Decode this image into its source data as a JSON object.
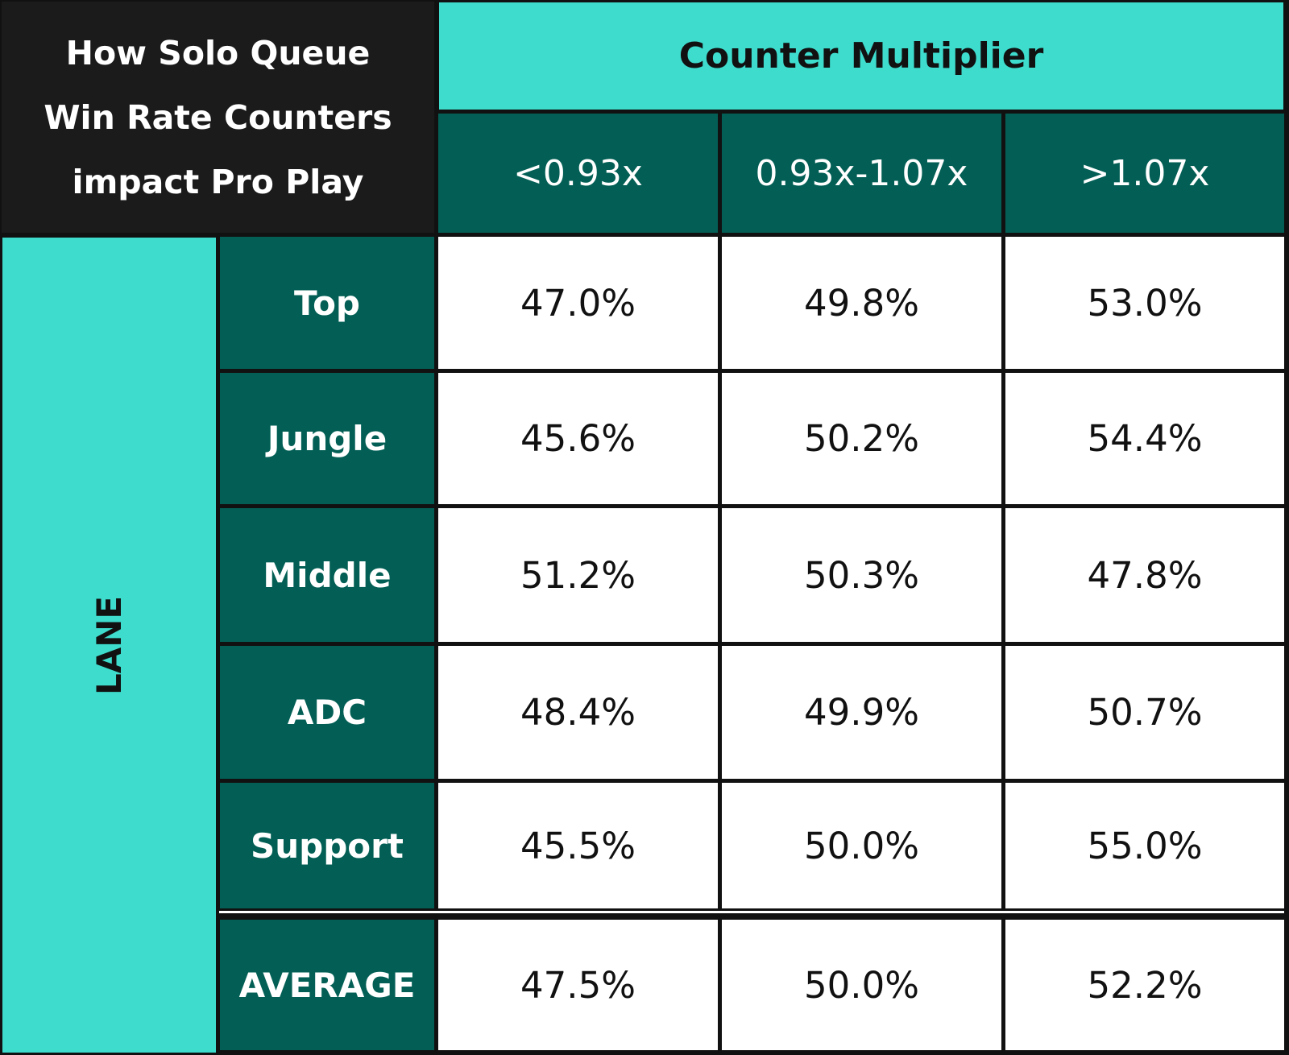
{
  "title_lines": [
    "How Solo Queue",
    "Win Rate Counters",
    "impact Pro Play"
  ],
  "column_group": "Counter Multiplier",
  "columns": [
    "<0.93x",
    "0.93x-1.07x",
    ">1.07x"
  ],
  "row_group": "LANE",
  "rows": [
    {
      "label": "Top",
      "values": [
        "47.0%",
        "49.8%",
        "53.0%"
      ]
    },
    {
      "label": "Jungle",
      "values": [
        "45.6%",
        "50.2%",
        "54.4%"
      ]
    },
    {
      "label": "Middle",
      "values": [
        "51.2%",
        "50.3%",
        "47.8%"
      ]
    },
    {
      "label": "ADC",
      "values": [
        "48.4%",
        "49.9%",
        "50.7%"
      ]
    },
    {
      "label": "Support",
      "values": [
        "45.5%",
        "50.0%",
        "55.0%"
      ]
    },
    {
      "label": "AVERAGE",
      "values": [
        "47.5%",
        "50.0%",
        "52.2%"
      ]
    }
  ]
}
